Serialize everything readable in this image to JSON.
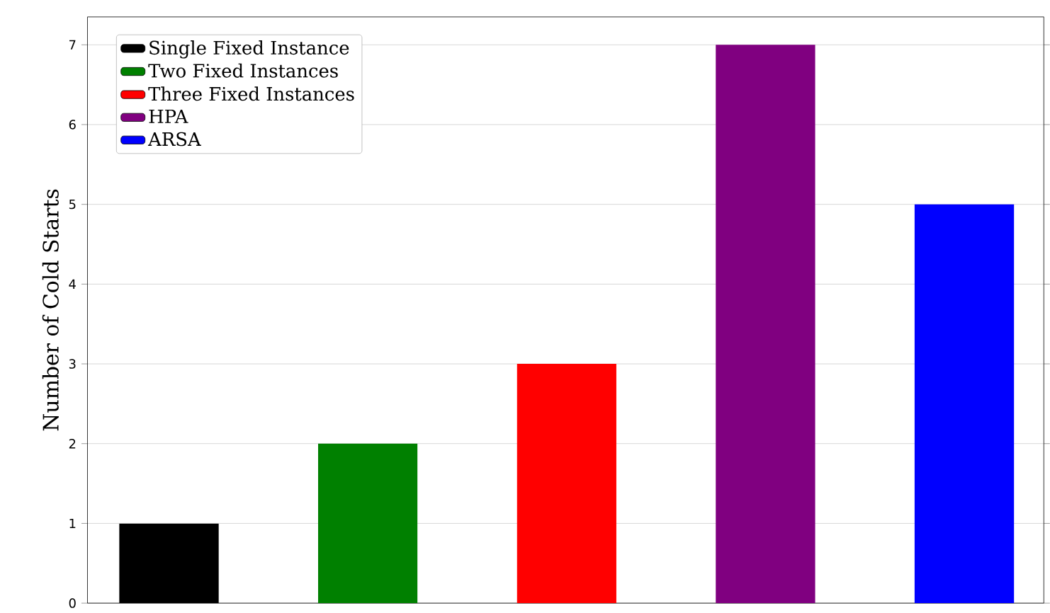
{
  "chart_data": {
    "type": "bar",
    "ylabel": "Number of Cold Starts",
    "categories": [
      null,
      null,
      null,
      null,
      null
    ],
    "series": [
      {
        "name": "Single Fixed Instance",
        "color": "#000000",
        "values": [
          1,
          null,
          null,
          null,
          null
        ]
      },
      {
        "name": "Two Fixed Instances",
        "color": "#008000",
        "values": [
          null,
          2,
          null,
          null,
          null
        ]
      },
      {
        "name": "Three Fixed Instances",
        "color": "#ff0000",
        "values": [
          null,
          null,
          3,
          null,
          null
        ]
      },
      {
        "name": "HPA",
        "color": "#800080",
        "values": [
          null,
          null,
          null,
          7,
          null
        ]
      },
      {
        "name": "ARSA",
        "color": "#0000ff",
        "values": [
          null,
          null,
          null,
          null,
          5
        ]
      }
    ],
    "ylim": [
      0,
      7.35
    ],
    "yticks": [
      0,
      1,
      2,
      3,
      4,
      5,
      6,
      7
    ],
    "grid": "y",
    "legend": "top left",
    "tick_labels": "y"
  }
}
